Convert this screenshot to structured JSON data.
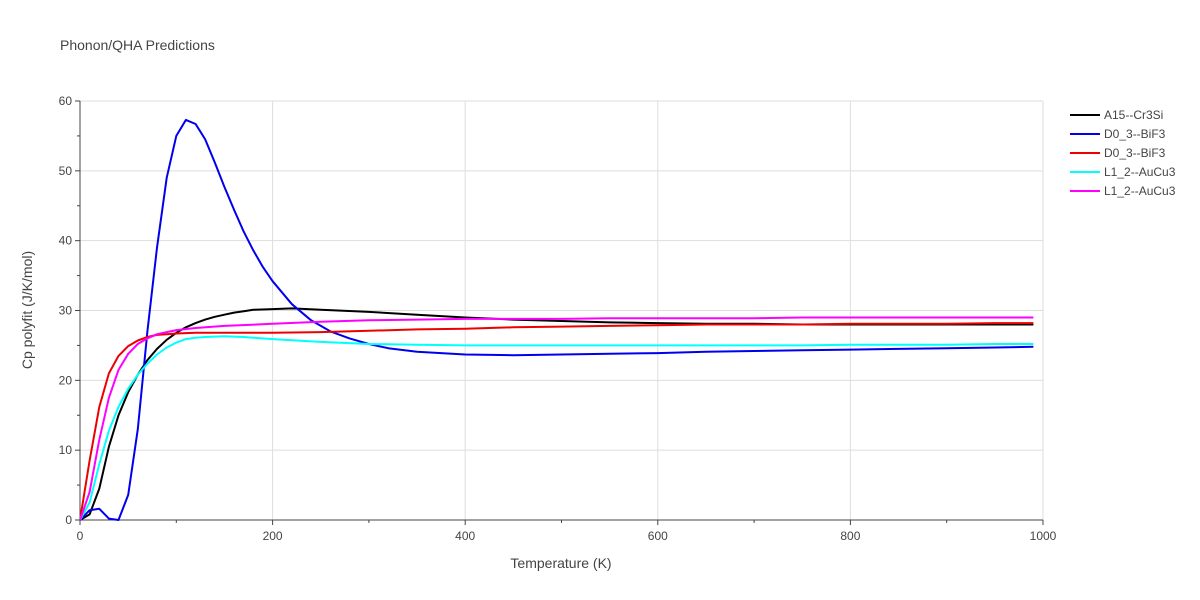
{
  "chart_data": {
    "type": "line",
    "title": "Phonon/QHA Predictions",
    "xlabel": "Temperature (K)",
    "ylabel": "Cp polyfit (J/K/mol)",
    "xlim": [
      0,
      1000
    ],
    "ylim": [
      0,
      60
    ],
    "xticks": [
      0,
      200,
      400,
      600,
      800,
      1000
    ],
    "yticks": [
      0,
      10,
      20,
      30,
      40,
      50,
      60
    ],
    "grid": true,
    "legend_position": "right",
    "series": [
      {
        "name": "A15--Cr3Si",
        "color": "#000000",
        "x": [
          0,
          10,
          20,
          30,
          40,
          50,
          60,
          70,
          80,
          90,
          100,
          110,
          120,
          130,
          140,
          150,
          160,
          170,
          180,
          200,
          220,
          250,
          300,
          350,
          400,
          450,
          500,
          550,
          600,
          650,
          700,
          750,
          800,
          850,
          900,
          950,
          990
        ],
        "y": [
          0,
          0.8,
          4.5,
          10.5,
          15.0,
          18.3,
          20.8,
          22.9,
          24.5,
          25.8,
          26.8,
          27.6,
          28.2,
          28.7,
          29.1,
          29.4,
          29.7,
          29.9,
          30.1,
          30.2,
          30.3,
          30.1,
          29.8,
          29.4,
          29.0,
          28.7,
          28.5,
          28.3,
          28.2,
          28.1,
          28.1,
          28.0,
          28.0,
          28.0,
          28.0,
          28.0,
          28.0
        ]
      },
      {
        "name": "D0_3--BiF3",
        "color": "#0000ee",
        "x": [
          0,
          10,
          20,
          30,
          40,
          50,
          60,
          70,
          80,
          90,
          100,
          110,
          120,
          130,
          140,
          150,
          160,
          170,
          180,
          190,
          200,
          220,
          240,
          260,
          280,
          300,
          320,
          350,
          400,
          450,
          500,
          550,
          600,
          650,
          700,
          750,
          800,
          850,
          900,
          950,
          990
        ],
        "y": [
          0,
          1.4,
          1.6,
          0.2,
          0,
          3.6,
          13,
          27,
          39,
          49,
          55,
          57.3,
          56.7,
          54.5,
          51.2,
          47.7,
          44.4,
          41.3,
          38.6,
          36.2,
          34.2,
          30.9,
          28.6,
          27.0,
          26.0,
          25.2,
          24.6,
          24.1,
          23.7,
          23.6,
          23.7,
          23.8,
          23.9,
          24.1,
          24.2,
          24.3,
          24.4,
          24.5,
          24.6,
          24.7,
          24.8
        ]
      },
      {
        "name": "D0_3--BiF3",
        "color": "#ee0000",
        "x": [
          0,
          10,
          20,
          30,
          40,
          50,
          60,
          70,
          80,
          90,
          100,
          120,
          150,
          200,
          250,
          300,
          350,
          400,
          450,
          500,
          550,
          600,
          650,
          700,
          750,
          800,
          850,
          900,
          950,
          990
        ],
        "y": [
          0,
          8.5,
          16.2,
          21.0,
          23.5,
          24.9,
          25.7,
          26.2,
          26.5,
          26.6,
          26.7,
          26.8,
          26.8,
          26.8,
          26.9,
          27.1,
          27.3,
          27.4,
          27.6,
          27.7,
          27.8,
          27.9,
          28.0,
          28.0,
          28.0,
          28.1,
          28.1,
          28.1,
          28.2,
          28.2
        ]
      },
      {
        "name": "L1_2--AuCu3",
        "color": "#00ffff",
        "x": [
          0,
          10,
          20,
          30,
          40,
          50,
          60,
          70,
          80,
          90,
          100,
          110,
          120,
          130,
          150,
          170,
          200,
          250,
          300,
          350,
          400,
          450,
          500,
          550,
          600,
          650,
          700,
          750,
          800,
          850,
          900,
          950,
          990
        ],
        "y": [
          0,
          2.5,
          8.0,
          12.8,
          16.2,
          18.8,
          20.8,
          22.4,
          23.7,
          24.7,
          25.4,
          25.9,
          26.1,
          26.2,
          26.3,
          26.2,
          25.9,
          25.5,
          25.2,
          25.1,
          25.0,
          25.0,
          25.0,
          25.0,
          25.0,
          25.0,
          25.0,
          25.0,
          25.1,
          25.1,
          25.1,
          25.2,
          25.2
        ]
      },
      {
        "name": "L1_2--AuCu3",
        "color": "#ff00ff",
        "x": [
          0,
          10,
          20,
          30,
          40,
          50,
          60,
          70,
          80,
          90,
          100,
          120,
          150,
          200,
          250,
          300,
          350,
          400,
          450,
          500,
          550,
          600,
          650,
          700,
          750,
          800,
          850,
          900,
          950,
          990
        ],
        "y": [
          0,
          4.0,
          11.5,
          17.5,
          21.5,
          23.8,
          25.2,
          26.0,
          26.6,
          26.9,
          27.2,
          27.5,
          27.8,
          28.1,
          28.4,
          28.6,
          28.7,
          28.8,
          28.8,
          28.8,
          28.9,
          28.9,
          28.9,
          28.9,
          29.0,
          29.0,
          29.0,
          29.0,
          29.0,
          29.0
        ]
      }
    ]
  }
}
